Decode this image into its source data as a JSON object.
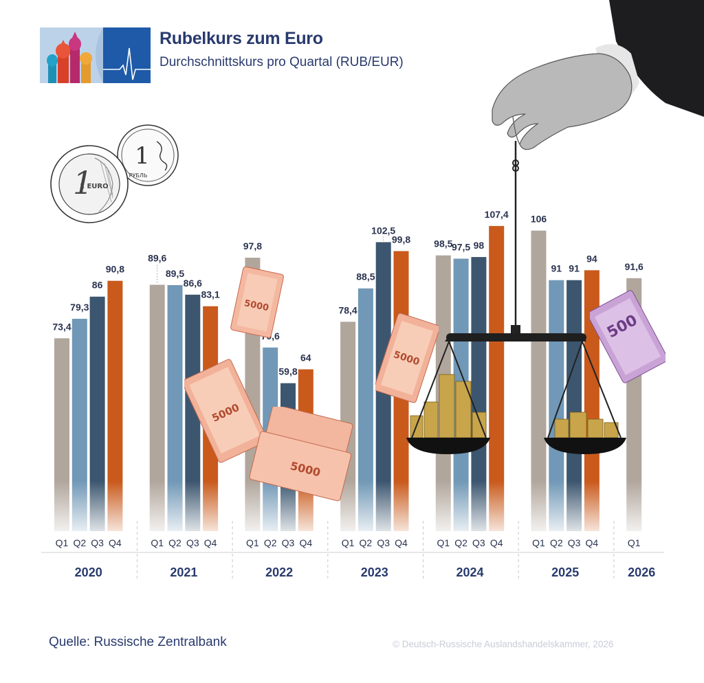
{
  "header": {
    "title": "Rubelkurs zum Euro",
    "subtitle": "Durchschnittskurs pro Quartal (RUB/EUR)"
  },
  "footer": {
    "source": "Quelle: Russische Zentralbank",
    "copyright": "© Deutsch-Russische Auslandshandelskammer, 2026"
  },
  "decorations": {
    "coin_euro_text": "1 EURO",
    "coin_ruble_text": "1 РУБЛЬ",
    "banknote_ruble_text": "5000",
    "banknote_euro_text": "500"
  },
  "colors": {
    "Q1": "#b1a69c",
    "Q2": "#7198b6",
    "Q3": "#3c566f",
    "Q4": "#c95a1c",
    "text": "#283a6e"
  },
  "chart_data": {
    "type": "bar",
    "title": "Rubelkurs zum Euro",
    "subtitle": "Durchschnittskurs pro Quartal (RUB/EUR)",
    "groups": [
      {
        "year": "2020",
        "quarters": [
          "Q1",
          "Q2",
          "Q3",
          "Q4"
        ],
        "values": [
          73.4,
          79.3,
          86,
          90.8
        ],
        "labels": [
          "73,4",
          "79,3",
          "86",
          "90,8"
        ]
      },
      {
        "year": "2021",
        "quarters": [
          "Q1",
          "Q2",
          "Q3",
          "Q4"
        ],
        "values": [
          89.6,
          89.5,
          86.6,
          83.1
        ],
        "labels": [
          "89,6",
          "89,5",
          "86,6",
          "83,1"
        ]
      },
      {
        "year": "2022",
        "quarters": [
          "Q1",
          "Q2",
          "Q3",
          "Q4"
        ],
        "values": [
          97.8,
          70.6,
          59.8,
          64
        ],
        "labels": [
          "97,8",
          "70,6",
          "59,8",
          "64"
        ]
      },
      {
        "year": "2023",
        "quarters": [
          "Q1",
          "Q2",
          "Q3",
          "Q4"
        ],
        "values": [
          78.4,
          88.5,
          102.5,
          99.8
        ],
        "labels": [
          "78,4",
          "88,5",
          "102,5",
          "99,8"
        ]
      },
      {
        "year": "2024",
        "quarters": [
          "Q1",
          "Q2",
          "Q3",
          "Q4"
        ],
        "values": [
          98.5,
          97.5,
          98,
          107.4
        ],
        "labels": [
          "98,5",
          "97,5",
          "98",
          "107,4"
        ]
      },
      {
        "year": "2025",
        "quarters": [
          "Q1",
          "Q2",
          "Q3",
          "Q4"
        ],
        "values": [
          106,
          91,
          91,
          94
        ],
        "labels": [
          "106",
          "91",
          "91",
          "94"
        ]
      },
      {
        "year": "2026",
        "quarters": [
          "Q1"
        ],
        "values": [
          91.6
        ],
        "labels": [
          "91,6"
        ]
      }
    ],
    "xlabel": "",
    "ylabel": "",
    "grid": false,
    "legend": "none"
  }
}
